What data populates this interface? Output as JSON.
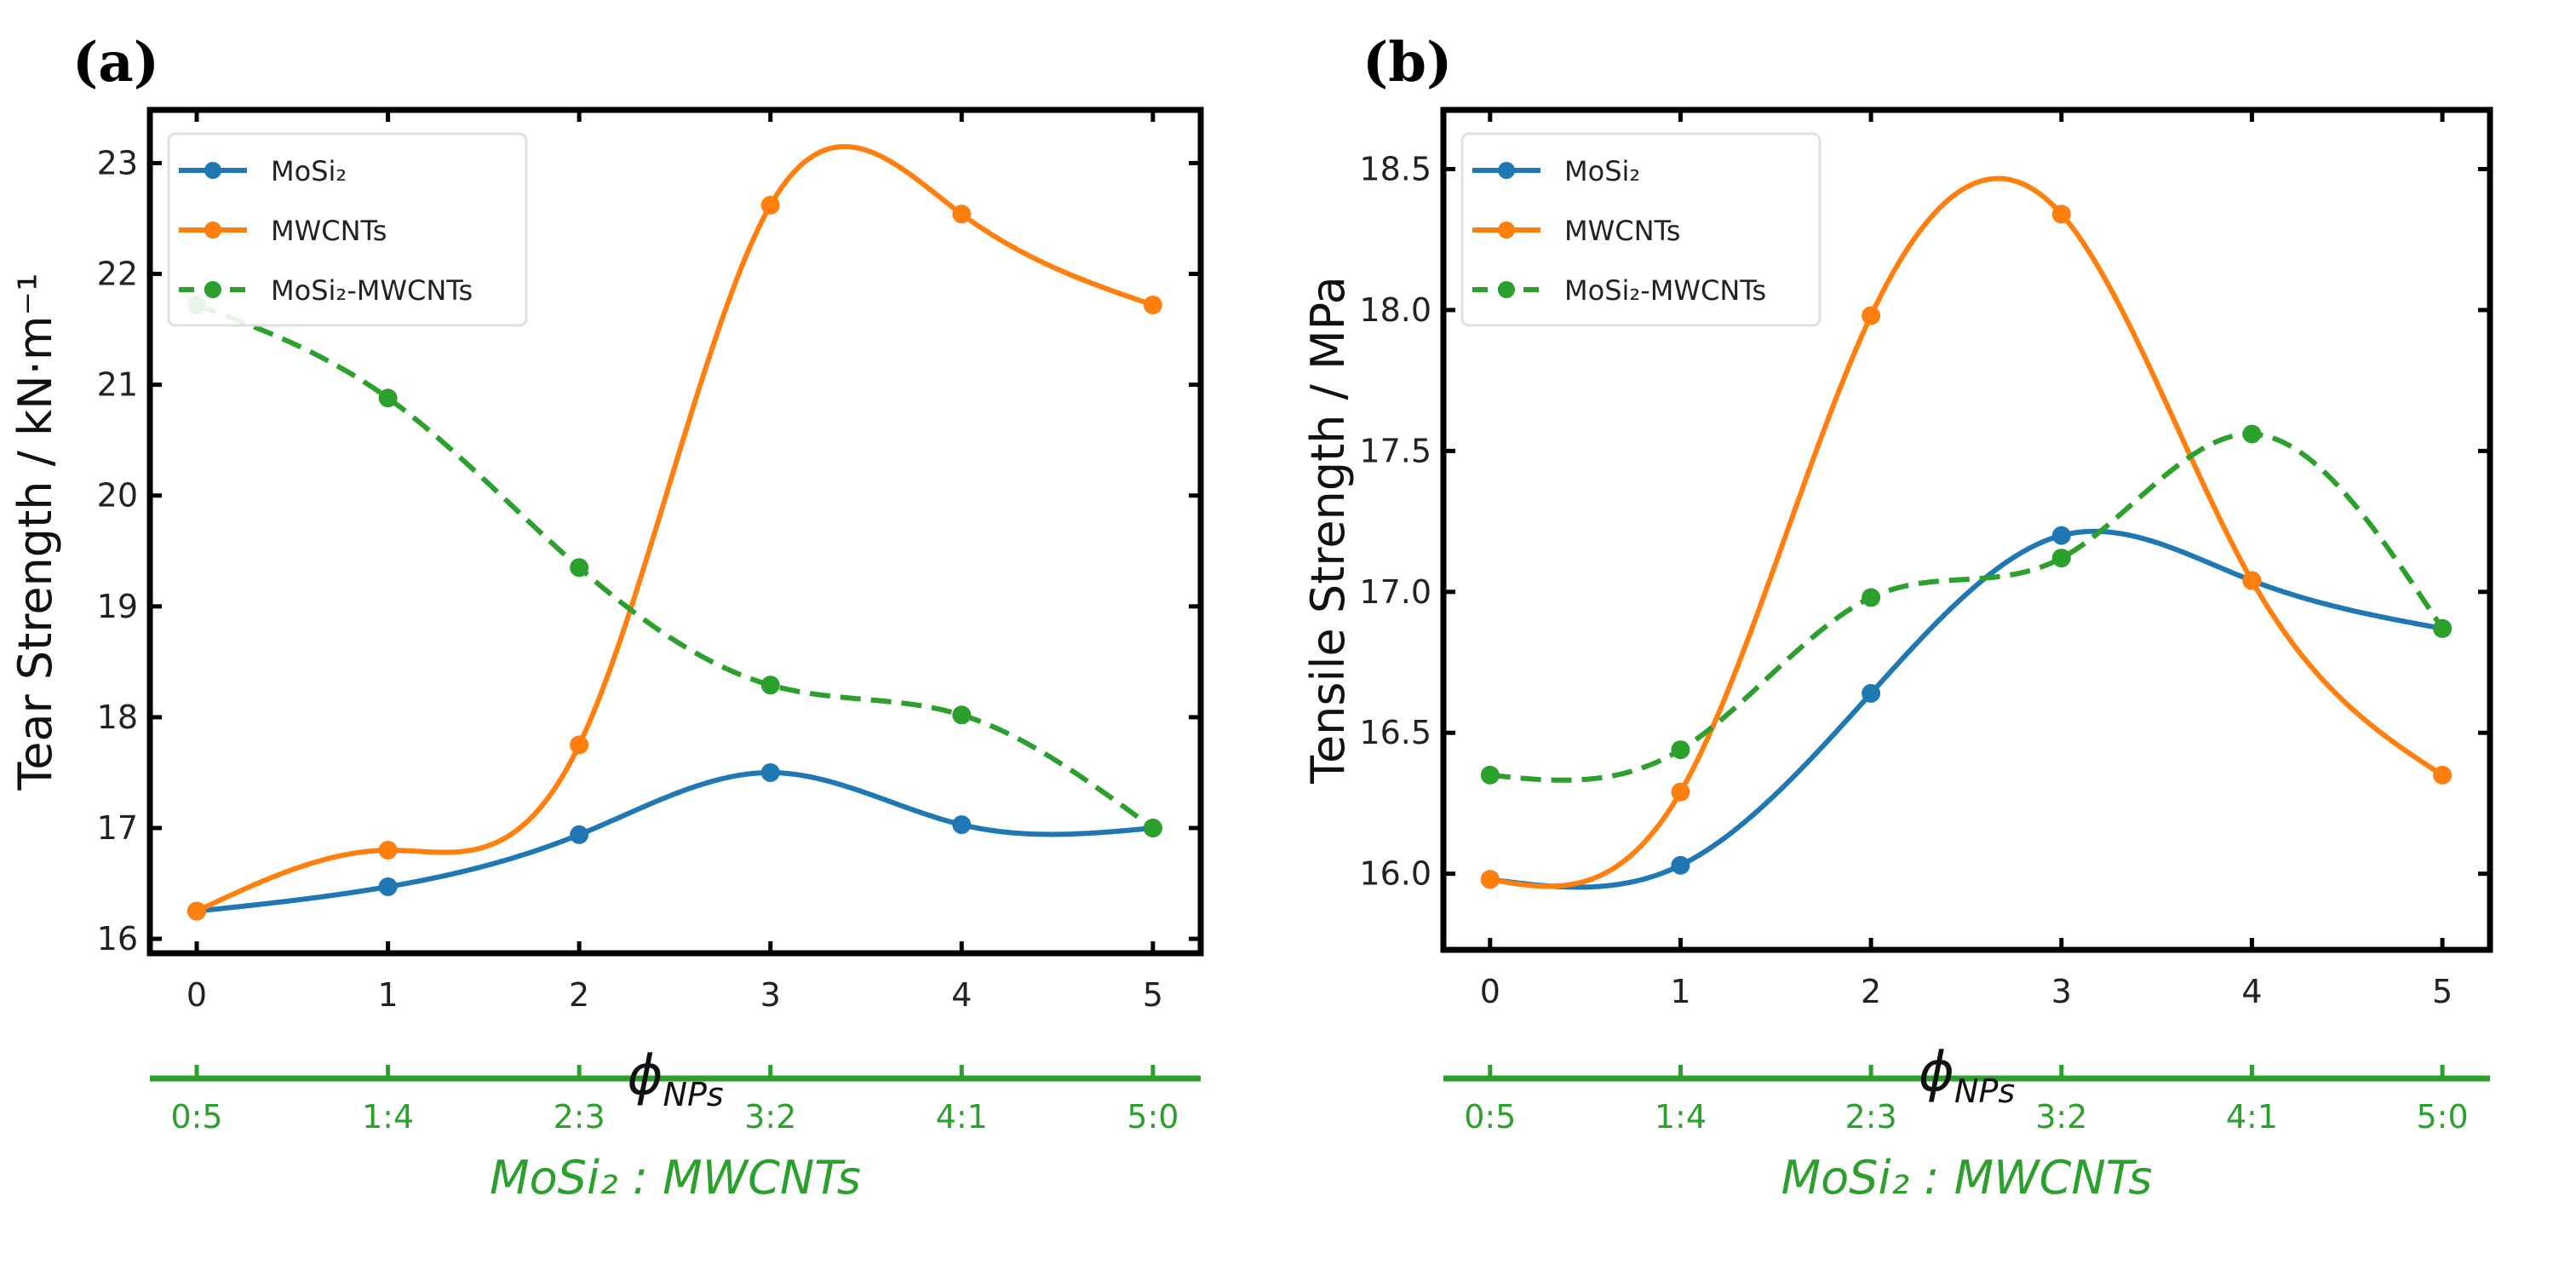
{
  "colors": {
    "MoSi2": "#1f77b4",
    "MWCNTs": "#ff7f0e",
    "hybrid": "#2ca02c",
    "secondary_axis": "#2ca02c"
  },
  "chart_data": [
    {
      "type": "line",
      "panel_label": "(a)",
      "ylabel": "Tear Strength / kN·m⁻¹",
      "xlabel": {
        "symbol": "ϕ",
        "sub": "NPs"
      },
      "x": [
        0,
        1,
        2,
        3,
        4,
        5
      ],
      "xticks": [
        "0",
        "1",
        "2",
        "3",
        "4",
        "5"
      ],
      "yticks": [
        "16",
        "17",
        "18",
        "19",
        "20",
        "21",
        "22",
        "23"
      ],
      "ytick_values": [
        16,
        17,
        18,
        19,
        20,
        21,
        22,
        23
      ],
      "xlim": [
        -0.245,
        5.25
      ],
      "ylim": [
        15.87,
        23.48
      ],
      "legend_position": "top-left",
      "series": [
        {
          "name": "MoSi₂",
          "color_key": "MoSi2",
          "dashed": false,
          "values": [
            16.25,
            16.47,
            16.94,
            17.5,
            17.03,
            17.0
          ]
        },
        {
          "name": "MWCNTs",
          "color_key": "MWCNTs",
          "dashed": false,
          "values": [
            16.25,
            16.8,
            17.75,
            22.62,
            22.54,
            21.72
          ]
        },
        {
          "name": "MoSi₂-MWCNTs",
          "color_key": "hybrid",
          "dashed": true,
          "values": [
            21.72,
            20.88,
            19.35,
            18.29,
            18.02,
            17.0
          ]
        }
      ],
      "secondary_xticks": [
        "0:5",
        "1:4",
        "2:3",
        "3:2",
        "4:1",
        "5:0"
      ],
      "secondary_xlabel": "MoSi₂ : MWCNTs"
    },
    {
      "type": "line",
      "panel_label": "(b)",
      "ylabel": "Tensile Strength / MPa",
      "xlabel": {
        "symbol": "ϕ",
        "sub": "NPs"
      },
      "x": [
        0,
        1,
        2,
        3,
        4,
        5
      ],
      "xticks": [
        "0",
        "1",
        "2",
        "3",
        "4",
        "5"
      ],
      "yticks": [
        "16.0",
        "16.5",
        "17.0",
        "17.5",
        "18.0",
        "18.5"
      ],
      "ytick_values": [
        16.0,
        16.5,
        17.0,
        17.5,
        18.0,
        18.5
      ],
      "xlim": [
        -0.245,
        5.25
      ],
      "ylim": [
        15.73,
        18.71
      ],
      "legend_position": "top-left",
      "series": [
        {
          "name": "MoSi₂",
          "color_key": "MoSi2",
          "dashed": false,
          "values": [
            15.98,
            16.03,
            16.64,
            17.2,
            17.04,
            16.87
          ]
        },
        {
          "name": "MWCNTs",
          "color_key": "MWCNTs",
          "dashed": false,
          "values": [
            15.98,
            16.29,
            17.98,
            18.34,
            17.04,
            16.35
          ]
        },
        {
          "name": "MoSi₂-MWCNTs",
          "color_key": "hybrid",
          "dashed": true,
          "values": [
            16.35,
            16.44,
            16.98,
            17.12,
            17.56,
            16.87
          ]
        }
      ],
      "secondary_xticks": [
        "0:5",
        "1:4",
        "2:3",
        "3:2",
        "4:1",
        "5:0"
      ],
      "secondary_xlabel": "MoSi₂ : MWCNTs"
    }
  ]
}
